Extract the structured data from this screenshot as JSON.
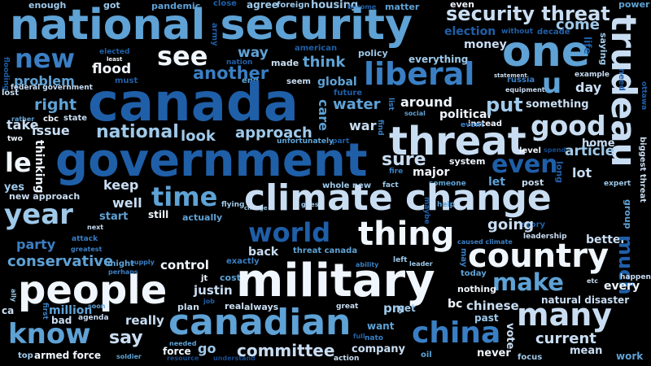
{
  "words": [
    "enough",
    "got",
    "pandemic",
    "close",
    "agree",
    "foreign",
    "housing",
    "become",
    "matter",
    "even",
    "power",
    "national security",
    "security threat",
    "one",
    "trudeau",
    "come",
    "life",
    "saying",
    "election",
    "without",
    "decade",
    "elected",
    "least",
    "army",
    "nation",
    "flooding",
    "american",
    "policy",
    "money",
    "new",
    "see",
    "way",
    "made",
    "everything",
    "statement",
    "russia",
    "example",
    "need",
    "ottawa",
    "think",
    "flood",
    "must",
    "end",
    "seem",
    "u",
    "equipment",
    "another",
    "liberal",
    "day",
    "problem",
    "federal government",
    "global",
    "future",
    "lost",
    "around",
    "something",
    "canada",
    "right",
    "water",
    "rather",
    "cbc",
    "state",
    "list",
    "social",
    "political",
    "instead",
    "put",
    "take",
    "two",
    "issue",
    "national",
    "look",
    "approach",
    "unfortunately",
    "care",
    "part",
    "find",
    "war",
    "event",
    "good",
    "threat",
    "level",
    "spend",
    "home",
    "thinking",
    "le",
    "government",
    "article",
    "even",
    "sure",
    "system",
    "long",
    "biggest threat",
    "yes",
    "keep",
    "time",
    "whole new",
    "fire",
    "major",
    "someone",
    "let",
    "post",
    "lot",
    "new approach",
    "year",
    "well",
    "flying",
    "change",
    "guess",
    "fact",
    "maybe",
    "expert",
    "climate change",
    "next",
    "still",
    "start",
    "actually",
    "group",
    "world",
    "story",
    "thing",
    "help",
    "attack",
    "greatest",
    "party",
    "going",
    "caused climate",
    "leadership",
    "better",
    "might",
    "supply",
    "perhaps",
    "exactly",
    "back",
    "left",
    "leader",
    "conservative",
    "country",
    "may",
    "threat canada",
    "ability",
    "control",
    "much",
    "jt",
    "cost",
    "today",
    "happen",
    "make",
    "military",
    "justin",
    "etc",
    "people",
    "every",
    "nothing",
    "natural disaster",
    "bc",
    "pm",
    "yet",
    "real",
    "always",
    "plan",
    "job",
    "ca",
    "first",
    "chinese",
    "great",
    "million",
    "soon",
    "past",
    "bad",
    "agenda",
    "really",
    "know",
    "say",
    "canadian",
    "want",
    "vote",
    "many",
    "full",
    "nato",
    "china",
    "current",
    "mean",
    "top",
    "armed force",
    "soldier",
    "needed",
    "resource",
    "understand",
    "force",
    "go",
    "committee",
    "company",
    "action",
    "oil",
    "never",
    "focus",
    "work",
    "ally"
  ]
}
